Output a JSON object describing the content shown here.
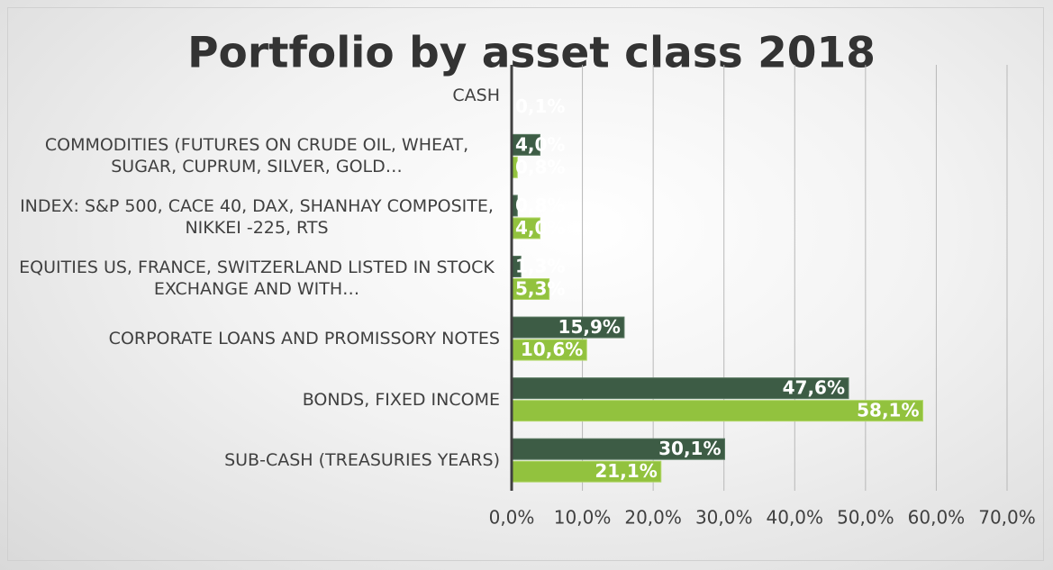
{
  "chart_data": {
    "type": "bar",
    "orientation": "horizontal",
    "title": "Portfolio by asset class 2018",
    "categories": [
      "CASH",
      "COMMODITIES (FUTURES ON CRUDE OIL, WHEAT, SUGAR, CUPRUM, SILVER, GOLD…",
      "INDEX: S&P 500, CACE 40, DAX, SHANHAY COMPOSITE, NIKKEI -225, RTS",
      "EQUITIES US, FRANCE, SWITZERLAND LISTED IN STOCK EXCHANGE AND WITH…",
      "CORPORATE LOANS AND PROMISSORY NOTES",
      "BONDS, FIXED INCOME",
      "SUB-CASH (TREASURIES  YEARS)"
    ],
    "series": [
      {
        "color": "#3d5c45",
        "values": [
          null,
          4.0,
          0.8,
          1.3,
          15.9,
          47.6,
          30.1
        ],
        "value_labels": [
          null,
          "4,0%",
          "0,8%",
          "1,3%",
          "15,9%",
          "47,6%",
          "30,1%"
        ]
      },
      {
        "color": "#92c23e",
        "values": [
          0.1,
          0.8,
          4.0,
          5.3,
          10.6,
          58.1,
          21.1
        ],
        "value_labels": [
          "0,1%",
          "0,8%",
          "4,0%",
          "5,3%",
          "10,6%",
          "58,1%",
          "21,1%"
        ]
      }
    ],
    "xlim": [
      0,
      70
    ],
    "xticks": [
      {
        "value": 0,
        "label": "0,0%"
      },
      {
        "value": 10,
        "label": "10,0%"
      },
      {
        "value": 20,
        "label": "20,0%"
      },
      {
        "value": 30,
        "label": "30,0%"
      },
      {
        "value": 40,
        "label": "40,0%"
      },
      {
        "value": 50,
        "label": "50,0%"
      },
      {
        "value": 60,
        "label": "60,0%"
      },
      {
        "value": 70,
        "label": "70,0%"
      }
    ],
    "grid": true
  }
}
